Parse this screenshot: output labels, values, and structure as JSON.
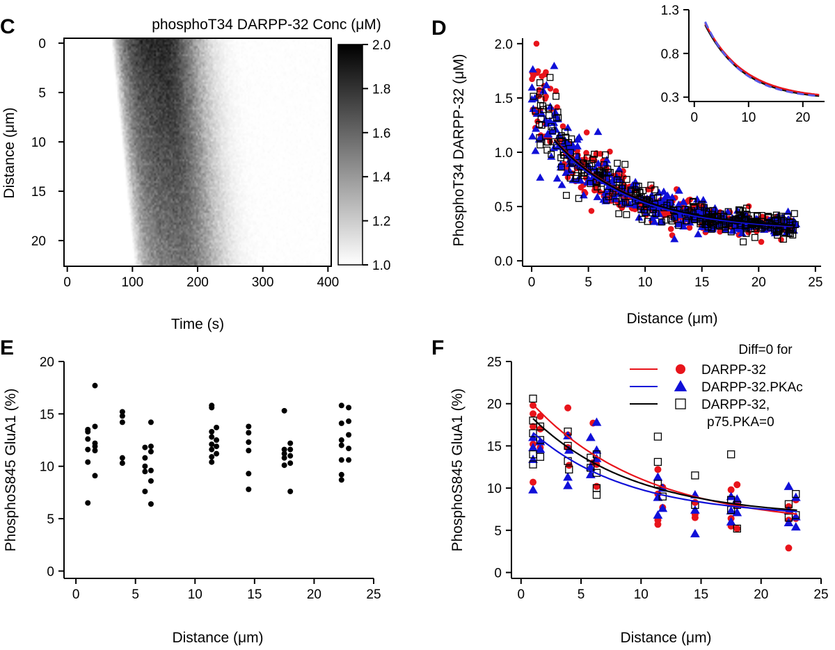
{
  "chart_data": [
    {
      "panel": "C",
      "type": "heatmap",
      "title": "phosphoT34 DARPP-32 Conc (μM)",
      "xlabel": "Time (s)",
      "ylabel": "Distance (μm)",
      "xlim": [
        -5,
        405
      ],
      "ylim": [
        -0.5,
        22.6
      ],
      "y_reversed": true,
      "xticks": [
        0,
        100,
        200,
        300,
        400
      ],
      "yticks": [
        0,
        5,
        10,
        15,
        20
      ],
      "colorbar": {
        "range": [
          1.0,
          2.0
        ],
        "ticks": [
          1.0,
          1.2,
          1.4,
          1.6,
          1.8,
          2.0
        ],
        "colors": [
          "#ffffff",
          "#000000"
        ]
      },
      "wave": {
        "rows": 115,
        "cols": 160,
        "t_start_at_0um": 70,
        "t_start_at_22um": 105,
        "t_peak_at_0um": 145,
        "t_peak_at_22um": 180,
        "rise_width_s": 25,
        "decay_s": 55,
        "peak_at_0um": 0.85,
        "peak_at_22um": 0.55,
        "t_end": 400
      }
    },
    {
      "panel": "D",
      "type": "scatter",
      "xlabel": "Distance (μm)",
      "ylabel": "PhosphoT34 DARPP-32 (μM)",
      "xlim": [
        -0.8,
        25.5
      ],
      "ylim": [
        -0.05,
        2.05
      ],
      "xticks": [
        0,
        5,
        10,
        15,
        20,
        25
      ],
      "yticks": [
        0.0,
        0.5,
        1.0,
        1.5,
        2.0
      ],
      "scatter_model": {
        "points_per_series": 320,
        "x_range": [
          0,
          23.3
        ],
        "a": 1.1,
        "b": 0.28,
        "tau": 7,
        "noise": 0.35,
        "ymin": 0.13
      },
      "series": [
        {
          "marker": "circle",
          "color": "#e8141b",
          "fit": {
            "a": 1.12,
            "b": 0.27,
            "tau": 7.2
          }
        },
        {
          "marker": "triangle",
          "color": "#1010d8",
          "fit": {
            "a": 1.1,
            "b": 0.28,
            "tau": 6.8
          }
        },
        {
          "marker": "open-square",
          "color": "#000000",
          "fit": {
            "a": 1.1,
            "b": 0.285,
            "tau": 7.0
          }
        }
      ],
      "fit_x_range": [
        2,
        23
      ],
      "inset": {
        "xlim": [
          -1,
          24
        ],
        "ylim": [
          0.25,
          1.3
        ],
        "xticks": [
          0,
          10,
          20
        ],
        "yticks": [
          0.3,
          0.8,
          1.3
        ],
        "ytick_labels": [
          "0.3",
          "0.8",
          "1.3"
        ],
        "curves": [
          {
            "color": "#111111",
            "width": 2.5,
            "dash": "",
            "a": 1.14,
            "b": 0.27,
            "tau": 7.0
          },
          {
            "color": "#e8141b",
            "width": 2.5,
            "dash": "",
            "a": 1.14,
            "b": 0.28,
            "tau": 7.2
          },
          {
            "color": "#5a5ae6",
            "width": 3,
            "dash": "10 6",
            "a": 1.2,
            "b": 0.275,
            "tau": 6.6
          }
        ],
        "x_range": [
          2,
          23
        ]
      }
    },
    {
      "panel": "E",
      "type": "scatter",
      "xlabel": "Distance (μm)",
      "ylabel": "PhosphoS845 GluA1 (%)",
      "xlim": [
        -1,
        25
      ],
      "ylim": [
        -0.7,
        20
      ],
      "xticks": [
        0,
        5,
        10,
        15,
        20,
        25
      ],
      "yticks": [
        0,
        5,
        10,
        15,
        20
      ],
      "series": [
        {
          "marker": "dot",
          "color": "#000000",
          "points": [
            [
              1.0,
              13.3
            ],
            [
              1.0,
              12.6
            ],
            [
              1.0,
              11.6
            ],
            [
              1.0,
              10.4
            ],
            [
              1.0,
              6.5
            ],
            [
              1.0,
              13.5
            ],
            [
              1.6,
              17.7
            ],
            [
              1.6,
              13.8
            ],
            [
              1.6,
              12.2
            ],
            [
              1.6,
              11.5
            ],
            [
              1.6,
              9.1
            ],
            [
              1.6,
              11.9
            ],
            [
              3.9,
              15.2
            ],
            [
              3.9,
              14.8
            ],
            [
              3.9,
              14.2
            ],
            [
              3.9,
              10.8
            ],
            [
              3.9,
              10.3
            ],
            [
              5.8,
              11.8
            ],
            [
              5.8,
              10.8
            ],
            [
              5.8,
              10.0
            ],
            [
              5.8,
              9.5
            ],
            [
              5.8,
              7.6
            ],
            [
              6.3,
              14.2
            ],
            [
              6.3,
              11.9
            ],
            [
              6.3,
              11.4
            ],
            [
              6.3,
              9.6
            ],
            [
              6.3,
              8.6
            ],
            [
              6.3,
              6.4
            ],
            [
              11.4,
              15.8
            ],
            [
              11.4,
              15.6
            ],
            [
              11.4,
              13.3
            ],
            [
              11.4,
              12.8
            ],
            [
              11.4,
              12.1
            ],
            [
              11.4,
              11.6
            ],
            [
              11.4,
              10.9
            ],
            [
              11.4,
              10.4
            ],
            [
              11.8,
              13.7
            ],
            [
              11.8,
              12.5
            ],
            [
              11.8,
              11.9
            ],
            [
              11.8,
              11.2
            ],
            [
              14.5,
              13.8
            ],
            [
              14.5,
              13.2
            ],
            [
              14.5,
              12.3
            ],
            [
              14.5,
              11.5
            ],
            [
              14.5,
              9.3
            ],
            [
              14.5,
              7.8
            ],
            [
              17.5,
              15.3
            ],
            [
              17.5,
              11.6
            ],
            [
              17.5,
              11.2
            ],
            [
              17.5,
              10.8
            ],
            [
              17.5,
              10.1
            ],
            [
              18.0,
              12.2
            ],
            [
              18.0,
              11.6
            ],
            [
              18.0,
              11.0
            ],
            [
              18.0,
              10.3
            ],
            [
              18.0,
              7.6
            ],
            [
              22.3,
              15.8
            ],
            [
              22.3,
              14.1
            ],
            [
              22.3,
              12.5
            ],
            [
              22.3,
              12.0
            ],
            [
              22.3,
              10.6
            ],
            [
              22.3,
              9.2
            ],
            [
              22.3,
              8.7
            ],
            [
              22.9,
              15.6
            ],
            [
              22.9,
              14.3
            ],
            [
              22.9,
              13.0
            ],
            [
              22.9,
              11.7
            ],
            [
              22.9,
              10.6
            ]
          ]
        }
      ]
    },
    {
      "panel": "F",
      "type": "scatter",
      "xlabel": "Distance (μm)",
      "ylabel": "PhosphoS845 GluA1 (%)",
      "xlim": [
        -0.8,
        25
      ],
      "ylim": [
        -0.7,
        25
      ],
      "xticks": [
        0,
        5,
        10,
        15,
        20,
        25
      ],
      "yticks": [
        0,
        5,
        10,
        15,
        20,
        25
      ],
      "legend": {
        "title": "Diff=0 for",
        "entries": [
          {
            "label": "DARPP-32",
            "color": "#e8141b",
            "marker": "circle"
          },
          {
            "label": "DARPP-32.PKAc",
            "color": "#1010d8",
            "marker": "triangle"
          },
          {
            "label": "DARPP-32,",
            "label2": "p75.PKA=0",
            "color": "#000000",
            "marker": "open-square"
          }
        ]
      },
      "group_x": [
        1.0,
        1.6,
        3.9,
        4.0,
        5.8,
        6.3,
        11.4,
        11.8,
        14.5,
        17.5,
        18.0,
        22.3,
        22.9
      ],
      "series": [
        {
          "name": "DARPP-32",
          "marker": "circle",
          "color": "#e8141b",
          "fit": {
            "a": 16.0,
            "b": 5.5,
            "tau": 9.5
          },
          "points": [
            [
              1.0,
              19.8
            ],
            [
              1.0,
              18.8
            ],
            [
              1.0,
              17.3
            ],
            [
              1.0,
              15.2
            ],
            [
              1.0,
              10.7
            ],
            [
              1.6,
              18.5
            ],
            [
              1.6,
              17.0
            ],
            [
              1.6,
              14.8
            ],
            [
              3.9,
              19.5
            ],
            [
              3.9,
              16.3
            ],
            [
              3.9,
              14.8
            ],
            [
              4.0,
              12.7
            ],
            [
              6.0,
              17.7
            ],
            [
              6.0,
              13.0
            ],
            [
              6.3,
              12.8
            ],
            [
              6.3,
              10.2
            ],
            [
              11.4,
              12.2
            ],
            [
              11.4,
              9.3
            ],
            [
              11.4,
              6.2
            ],
            [
              11.4,
              5.7
            ],
            [
              11.8,
              10.1
            ],
            [
              11.8,
              7.7
            ],
            [
              14.5,
              8.3
            ],
            [
              14.5,
              6.9
            ],
            [
              14.5,
              6.5
            ],
            [
              17.5,
              9.8
            ],
            [
              17.5,
              6.4
            ],
            [
              17.5,
              5.5
            ],
            [
              18.0,
              10.4
            ],
            [
              18.0,
              8.0
            ],
            [
              18.0,
              5.2
            ],
            [
              22.3,
              2.9
            ],
            [
              22.3,
              7.8
            ],
            [
              22.3,
              6.2
            ],
            [
              22.9,
              8.6
            ],
            [
              22.9,
              6.4
            ]
          ]
        },
        {
          "name": "DARPP-32.PKAc",
          "marker": "triangle",
          "color": "#1010d8",
          "fit": {
            "a": 11.3,
            "b": 6.6,
            "tau": 8.0
          },
          "points": [
            [
              1.0,
              16.0
            ],
            [
              1.0,
              14.8
            ],
            [
              1.0,
              13.4
            ],
            [
              1.0,
              9.8
            ],
            [
              1.6,
              15.5
            ],
            [
              1.6,
              14.6
            ],
            [
              3.9,
              16.2
            ],
            [
              3.9,
              11.3
            ],
            [
              3.9,
              10.3
            ],
            [
              4.0,
              14.5
            ],
            [
              5.8,
              16.0
            ],
            [
              5.8,
              12.5
            ],
            [
              5.8,
              11.6
            ],
            [
              6.3,
              17.8
            ],
            [
              6.3,
              14.5
            ],
            [
              6.3,
              13.5
            ],
            [
              11.4,
              11.3
            ],
            [
              11.4,
              8.9
            ],
            [
              11.4,
              6.8
            ],
            [
              11.8,
              10.0
            ],
            [
              11.8,
              7.6
            ],
            [
              14.5,
              9.2
            ],
            [
              14.5,
              7.4
            ],
            [
              14.5,
              4.6
            ],
            [
              17.5,
              9.0
            ],
            [
              17.5,
              7.3
            ],
            [
              17.5,
              6.0
            ],
            [
              18.0,
              8.7
            ],
            [
              18.0,
              7.1
            ],
            [
              22.3,
              10.2
            ],
            [
              22.3,
              7.3
            ],
            [
              22.3,
              5.9
            ],
            [
              22.9,
              8.9
            ],
            [
              22.9,
              6.6
            ],
            [
              22.9,
              5.4
            ]
          ]
        },
        {
          "name": "DARPP-32,",
          "marker": "open-square",
          "color": "#000000",
          "fit": {
            "a": 13.2,
            "b": 6.5,
            "tau": 8.5
          },
          "points": [
            [
              1.0,
              20.6
            ],
            [
              1.0,
              18.0
            ],
            [
              1.0,
              16.5
            ],
            [
              1.0,
              14.0
            ],
            [
              1.0,
              12.8
            ],
            [
              1.6,
              17.3
            ],
            [
              1.6,
              15.7
            ],
            [
              1.6,
              13.7
            ],
            [
              3.9,
              16.7
            ],
            [
              3.9,
              15.0
            ],
            [
              3.9,
              13.2
            ],
            [
              4.0,
              12.2
            ],
            [
              5.8,
              13.6
            ],
            [
              5.8,
              12.4
            ],
            [
              6.3,
              14.0
            ],
            [
              6.3,
              11.8
            ],
            [
              6.3,
              10.0
            ],
            [
              6.3,
              9.2
            ],
            [
              11.4,
              16.1
            ],
            [
              11.4,
              13.1
            ],
            [
              11.4,
              10.5
            ],
            [
              11.8,
              9.0
            ],
            [
              14.5,
              11.5
            ],
            [
              14.5,
              8.0
            ],
            [
              17.5,
              14.0
            ],
            [
              17.5,
              8.6
            ],
            [
              17.5,
              7.4
            ],
            [
              18.0,
              8.0
            ],
            [
              18.0,
              5.2
            ],
            [
              22.3,
              8.1
            ],
            [
              22.3,
              6.5
            ],
            [
              22.9,
              9.3
            ],
            [
              22.9,
              6.8
            ]
          ]
        }
      ]
    }
  ]
}
